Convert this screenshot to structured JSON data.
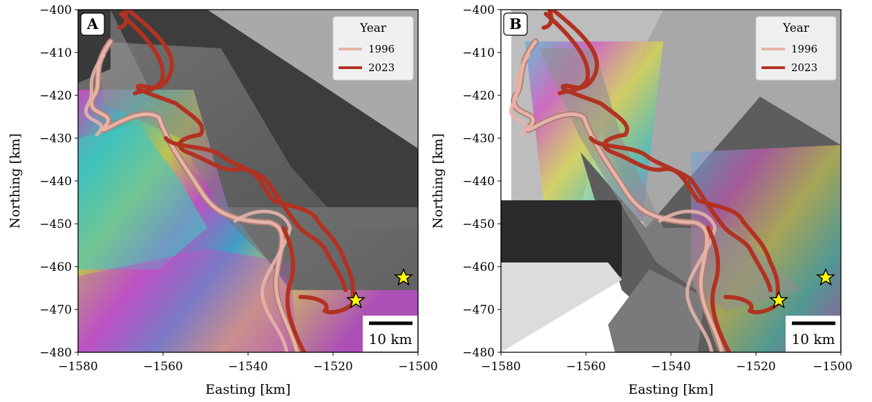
{
  "figure": {
    "panels": [
      {
        "label": "A",
        "legend": {
          "title": "Year",
          "entries": [
            {
              "label": "1996",
              "color": "#e5b3a8"
            },
            {
              "label": "2023",
              "color": "#b23222"
            }
          ]
        },
        "scale_bar_label": "10 km",
        "xlabel": "Easting [km]",
        "ylabel": "Northing [km]",
        "xticks": [
          "−1580",
          "−1560",
          "−1540",
          "−1520",
          "−1500"
        ],
        "yticks": [
          "−400",
          "−410",
          "−420",
          "−430",
          "−440",
          "−450",
          "−460",
          "−470",
          "−480"
        ]
      },
      {
        "label": "B",
        "legend": {
          "title": "Year",
          "entries": [
            {
              "label": "1996",
              "color": "#e5b3a8"
            },
            {
              "label": "2023",
              "color": "#b23222"
            }
          ]
        },
        "scale_bar_label": "10 km",
        "xlabel": "Easting [km]",
        "ylabel": "Northing [km]",
        "xticks": [
          "−1580",
          "−1560",
          "−1540",
          "−1520",
          "−1500"
        ],
        "yticks": [
          "−400",
          "−410",
          "−420",
          "−430",
          "−440",
          "−450",
          "−460",
          "−470",
          "−480"
        ]
      }
    ],
    "colors": {
      "line_1996": "#e5b3a8",
      "line_2023": "#b23222",
      "star": "#ffff00"
    },
    "icons": [
      "star-marker-icon"
    ]
  }
}
